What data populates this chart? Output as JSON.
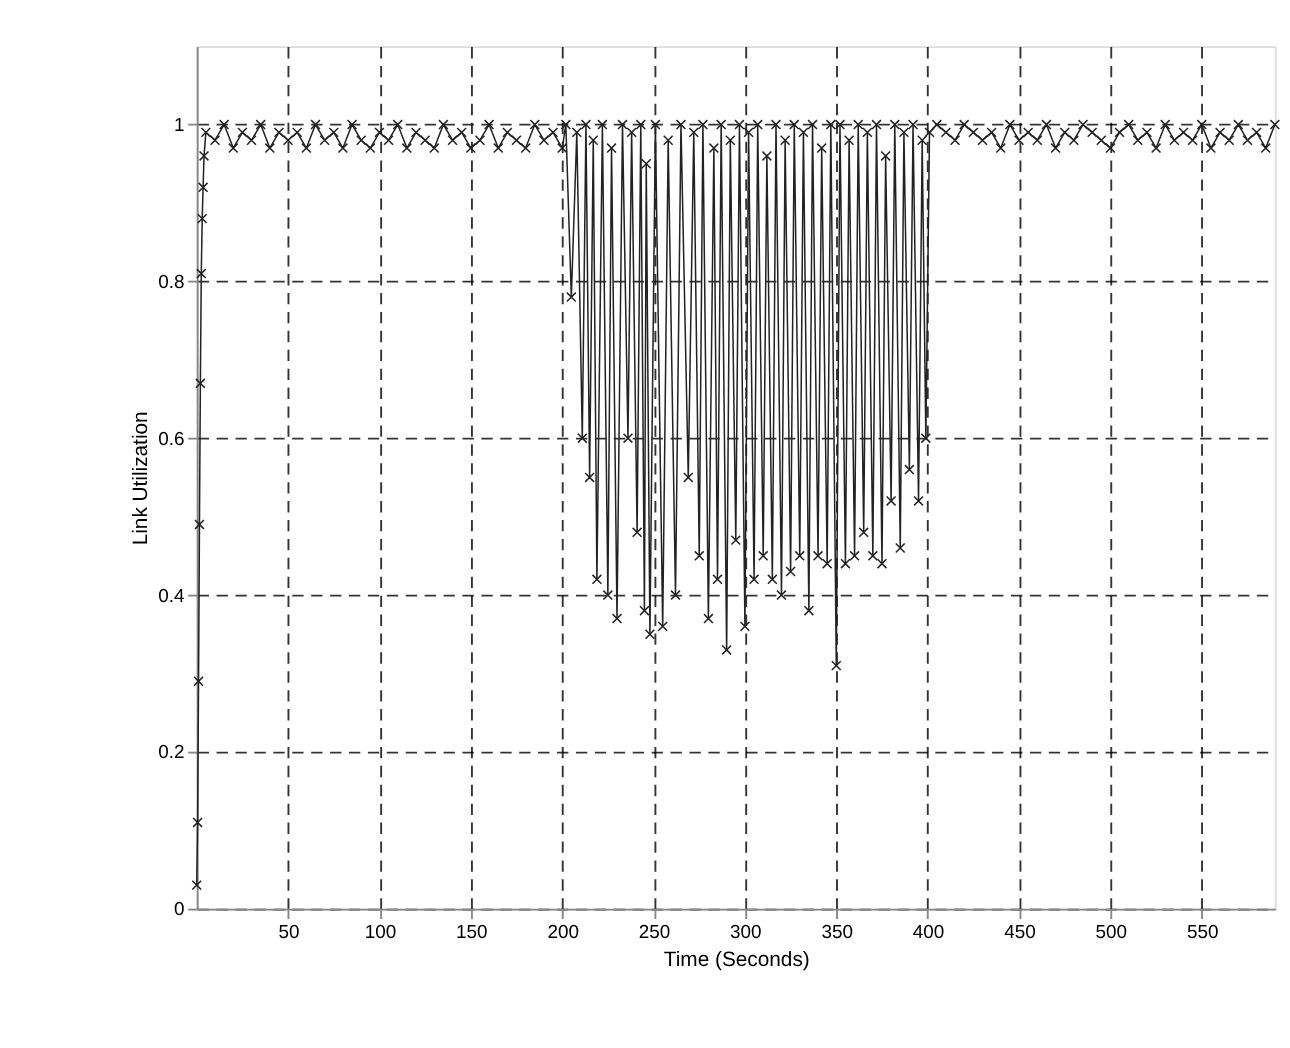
{
  "chart_data": {
    "type": "line",
    "xlabel": "Time (Seconds)",
    "ylabel": "Link Utilization",
    "xlim": [
      0,
      590
    ],
    "ylim": [
      0,
      1.1
    ],
    "xticks": [
      50,
      100,
      150,
      200,
      250,
      300,
      350,
      400,
      450,
      500,
      550
    ],
    "yticks": [
      0,
      0.2,
      0.4,
      0.6,
      0.8,
      1
    ],
    "grid": true,
    "marker": "cross",
    "line_style": "solid",
    "series": [
      {
        "color": "#222222",
        "x": [
          0,
          0.5,
          1,
          1.5,
          2,
          2.5,
          3,
          3.5,
          4,
          5,
          10,
          15,
          20,
          25,
          30,
          35,
          40,
          45,
          50,
          55,
          60,
          65,
          70,
          75,
          80,
          85,
          90,
          95,
          100,
          105,
          110,
          115,
          120,
          125,
          130,
          135,
          140,
          145,
          150,
          155,
          160,
          165,
          170,
          175,
          180,
          185,
          190,
          195,
          200,
          202,
          205,
          208,
          211,
          213,
          215,
          217,
          219,
          222,
          225,
          227,
          230,
          233,
          236,
          238,
          241,
          243,
          245,
          246,
          248,
          251,
          255,
          258,
          262,
          265,
          269,
          272,
          275,
          277,
          280,
          283,
          285,
          287,
          290,
          292,
          295,
          297,
          300,
          302,
          305,
          307,
          310,
          312,
          315,
          317,
          320,
          322,
          325,
          327,
          330,
          332,
          335,
          337,
          340,
          342,
          345,
          347,
          350,
          352,
          355,
          357,
          360,
          362,
          365,
          367,
          370,
          372,
          375,
          377,
          380,
          382,
          385,
          387,
          390,
          392,
          395,
          397,
          399,
          401,
          405,
          410,
          415,
          420,
          425,
          430,
          435,
          440,
          445,
          450,
          455,
          460,
          465,
          470,
          475,
          480,
          485,
          490,
          495,
          500,
          505,
          510,
          515,
          520,
          525,
          530,
          535,
          540,
          545,
          550,
          555,
          560,
          565,
          570,
          575,
          580,
          585,
          590
        ],
        "values": [
          0.03,
          0.11,
          0.29,
          0.49,
          0.67,
          0.81,
          0.88,
          0.92,
          0.96,
          0.99,
          0.98,
          1.0,
          0.97,
          0.99,
          0.98,
          1.0,
          0.97,
          0.99,
          0.98,
          0.99,
          0.97,
          1.0,
          0.98,
          0.99,
          0.97,
          1.0,
          0.98,
          0.97,
          0.99,
          0.98,
          1.0,
          0.97,
          0.99,
          0.98,
          0.97,
          1.0,
          0.98,
          0.99,
          0.97,
          0.98,
          1.0,
          0.97,
          0.99,
          0.98,
          0.97,
          1.0,
          0.98,
          0.99,
          0.97,
          1.0,
          0.78,
          0.99,
          0.6,
          1.0,
          0.55,
          0.98,
          0.42,
          1.0,
          0.4,
          0.97,
          0.37,
          1.0,
          0.6,
          0.99,
          0.48,
          1.0,
          0.38,
          0.95,
          0.35,
          1.0,
          0.36,
          0.98,
          0.4,
          1.0,
          0.55,
          0.99,
          0.45,
          1.0,
          0.37,
          0.97,
          0.42,
          1.0,
          0.33,
          0.98,
          0.47,
          1.0,
          0.36,
          0.99,
          0.42,
          1.0,
          0.45,
          0.96,
          0.42,
          1.0,
          0.4,
          0.98,
          0.43,
          1.0,
          0.45,
          0.99,
          0.38,
          1.0,
          0.45,
          0.97,
          0.44,
          1.0,
          0.31,
          1.0,
          0.44,
          0.98,
          0.45,
          1.0,
          0.48,
          0.99,
          0.45,
          1.0,
          0.44,
          0.96,
          0.52,
          1.0,
          0.46,
          0.99,
          0.56,
          1.0,
          0.52,
          0.98,
          0.6,
          0.99,
          1.0,
          0.99,
          0.98,
          1.0,
          0.99,
          0.98,
          0.99,
          0.97,
          1.0,
          0.98,
          0.99,
          0.98,
          1.0,
          0.97,
          0.99,
          0.98,
          1.0,
          0.99,
          0.98,
          0.97,
          0.99,
          1.0,
          0.98,
          0.99,
          0.97,
          1.0,
          0.98,
          0.99,
          0.98,
          1.0,
          0.97,
          0.99,
          0.98,
          1.0,
          0.98,
          0.99,
          0.97,
          1.0
        ]
      }
    ]
  }
}
